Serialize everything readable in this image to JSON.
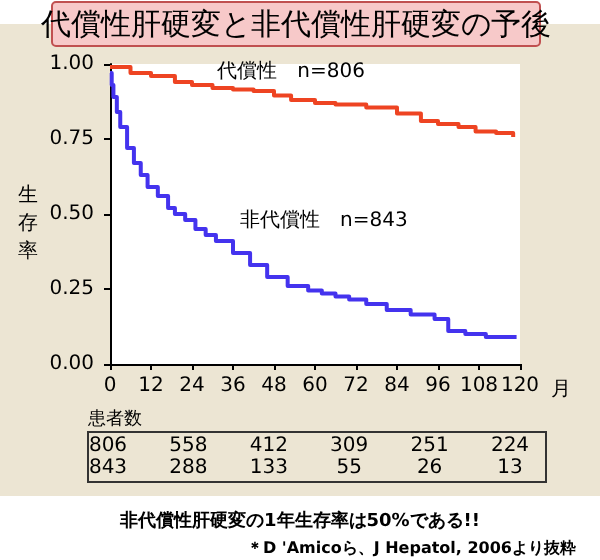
{
  "chart_data": {
    "type": "step",
    "title": "代償性肝硬変と非代償性肝硬変の予後",
    "xlabel": "月",
    "ylabel": "生存率",
    "xlim": [
      0,
      120
    ],
    "xticks": [
      0,
      12,
      24,
      36,
      48,
      60,
      72,
      84,
      96,
      108,
      120
    ],
    "ylim": [
      0,
      1
    ],
    "yticks": [
      {
        "value": 0,
        "label": "0.00"
      },
      {
        "value": 0.25,
        "label": "0.25"
      },
      {
        "value": 0.5,
        "label": "0.50"
      },
      {
        "value": 0.75,
        "label": "0.75"
      },
      {
        "value": 1,
        "label": "1.00"
      }
    ],
    "series": [
      {
        "name": "代償性　n=806",
        "color": "#ee4422",
        "x": [
          0,
          6,
          12,
          19,
          24,
          30,
          36,
          42,
          48,
          53,
          60,
          66,
          75,
          84,
          91,
          96,
          102,
          107,
          113,
          118
        ],
        "values": [
          0.99,
          0.97,
          0.96,
          0.94,
          0.93,
          0.92,
          0.915,
          0.91,
          0.895,
          0.88,
          0.87,
          0.865,
          0.855,
          0.835,
          0.81,
          0.8,
          0.79,
          0.775,
          0.77,
          0.757
        ]
      },
      {
        "name": "非代償性　n=843",
        "color": "#4433ee",
        "x": [
          0,
          0.5,
          1,
          2,
          3,
          5,
          7,
          9,
          11,
          14,
          17,
          19,
          22,
          25,
          28,
          31,
          36,
          41,
          46,
          52,
          58,
          62,
          66,
          70,
          75,
          81,
          88,
          95,
          99,
          104,
          110,
          119
        ],
        "values": [
          0.97,
          0.93,
          0.89,
          0.84,
          0.79,
          0.72,
          0.67,
          0.63,
          0.59,
          0.56,
          0.52,
          0.5,
          0.48,
          0.45,
          0.43,
          0.41,
          0.37,
          0.33,
          0.29,
          0.26,
          0.245,
          0.235,
          0.225,
          0.215,
          0.2,
          0.18,
          0.165,
          0.15,
          0.11,
          0.1,
          0.09,
          0.088
        ]
      }
    ],
    "annotations": [
      "患者数",
      "806 558 412 309 251 224",
      "843 288 133 55 26 13",
      "非代償性肝硬変の1年生存率は50%である!!",
      "＊D 'Amicoら、J Hepatol, 2006より抜粋"
    ]
  }
}
